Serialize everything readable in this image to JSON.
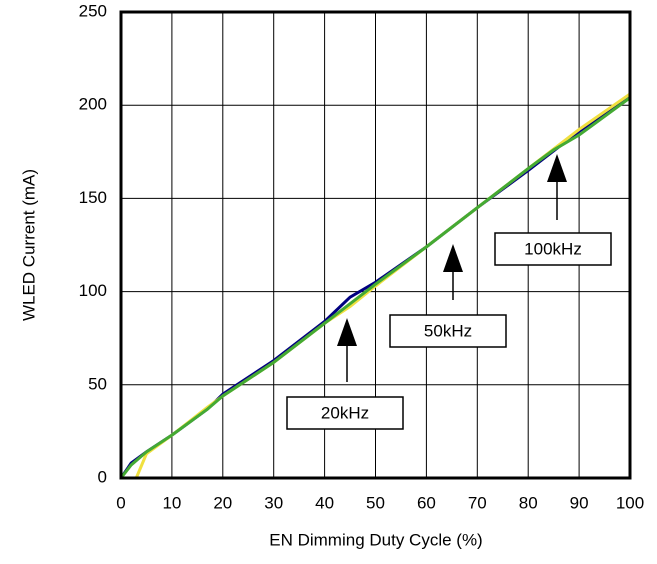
{
  "chart_data": {
    "type": "line",
    "x_label": "EN Dimming Duty Cycle (%)",
    "y_label": "WLED Current (mA)",
    "xlim": [
      0,
      100
    ],
    "xticks": [
      0,
      10,
      20,
      30,
      40,
      50,
      60,
      70,
      80,
      90,
      100
    ],
    "ylim": [
      0,
      250
    ],
    "yticks": [
      0,
      50,
      100,
      150,
      200,
      250
    ],
    "grid": true,
    "series": [
      {
        "name": "20kHz",
        "color": "#000080",
        "x": [
          0,
          2,
          5,
          10,
          17,
          20,
          30,
          40,
          45,
          50,
          60,
          70,
          80,
          90,
          100
        ],
        "values": [
          0,
          8,
          14,
          23,
          37,
          45,
          63,
          84,
          97,
          105,
          124,
          145,
          165,
          186,
          205
        ]
      },
      {
        "name": "50kHz",
        "color": "#f0e040",
        "x": [
          3,
          5,
          10,
          17,
          20,
          30,
          40,
          45,
          50,
          60,
          70,
          80,
          90,
          100
        ],
        "values": [
          0,
          13,
          23,
          38,
          44,
          62,
          83,
          92,
          103,
          124,
          145,
          166,
          187,
          206
        ]
      },
      {
        "name": "100kHz",
        "color": "#44aa33",
        "x": [
          0,
          2,
          5,
          10,
          17,
          20,
          30,
          40,
          50,
          60,
          70,
          80,
          83,
          85,
          90,
          100
        ],
        "values": [
          0,
          7,
          14,
          23,
          37,
          44,
          62,
          83,
          104,
          124,
          145,
          166,
          172,
          176,
          184,
          204
        ]
      }
    ],
    "annotations": [
      {
        "text": "20kHz"
      },
      {
        "text": "50kHz"
      },
      {
        "text": "100kHz"
      }
    ]
  }
}
